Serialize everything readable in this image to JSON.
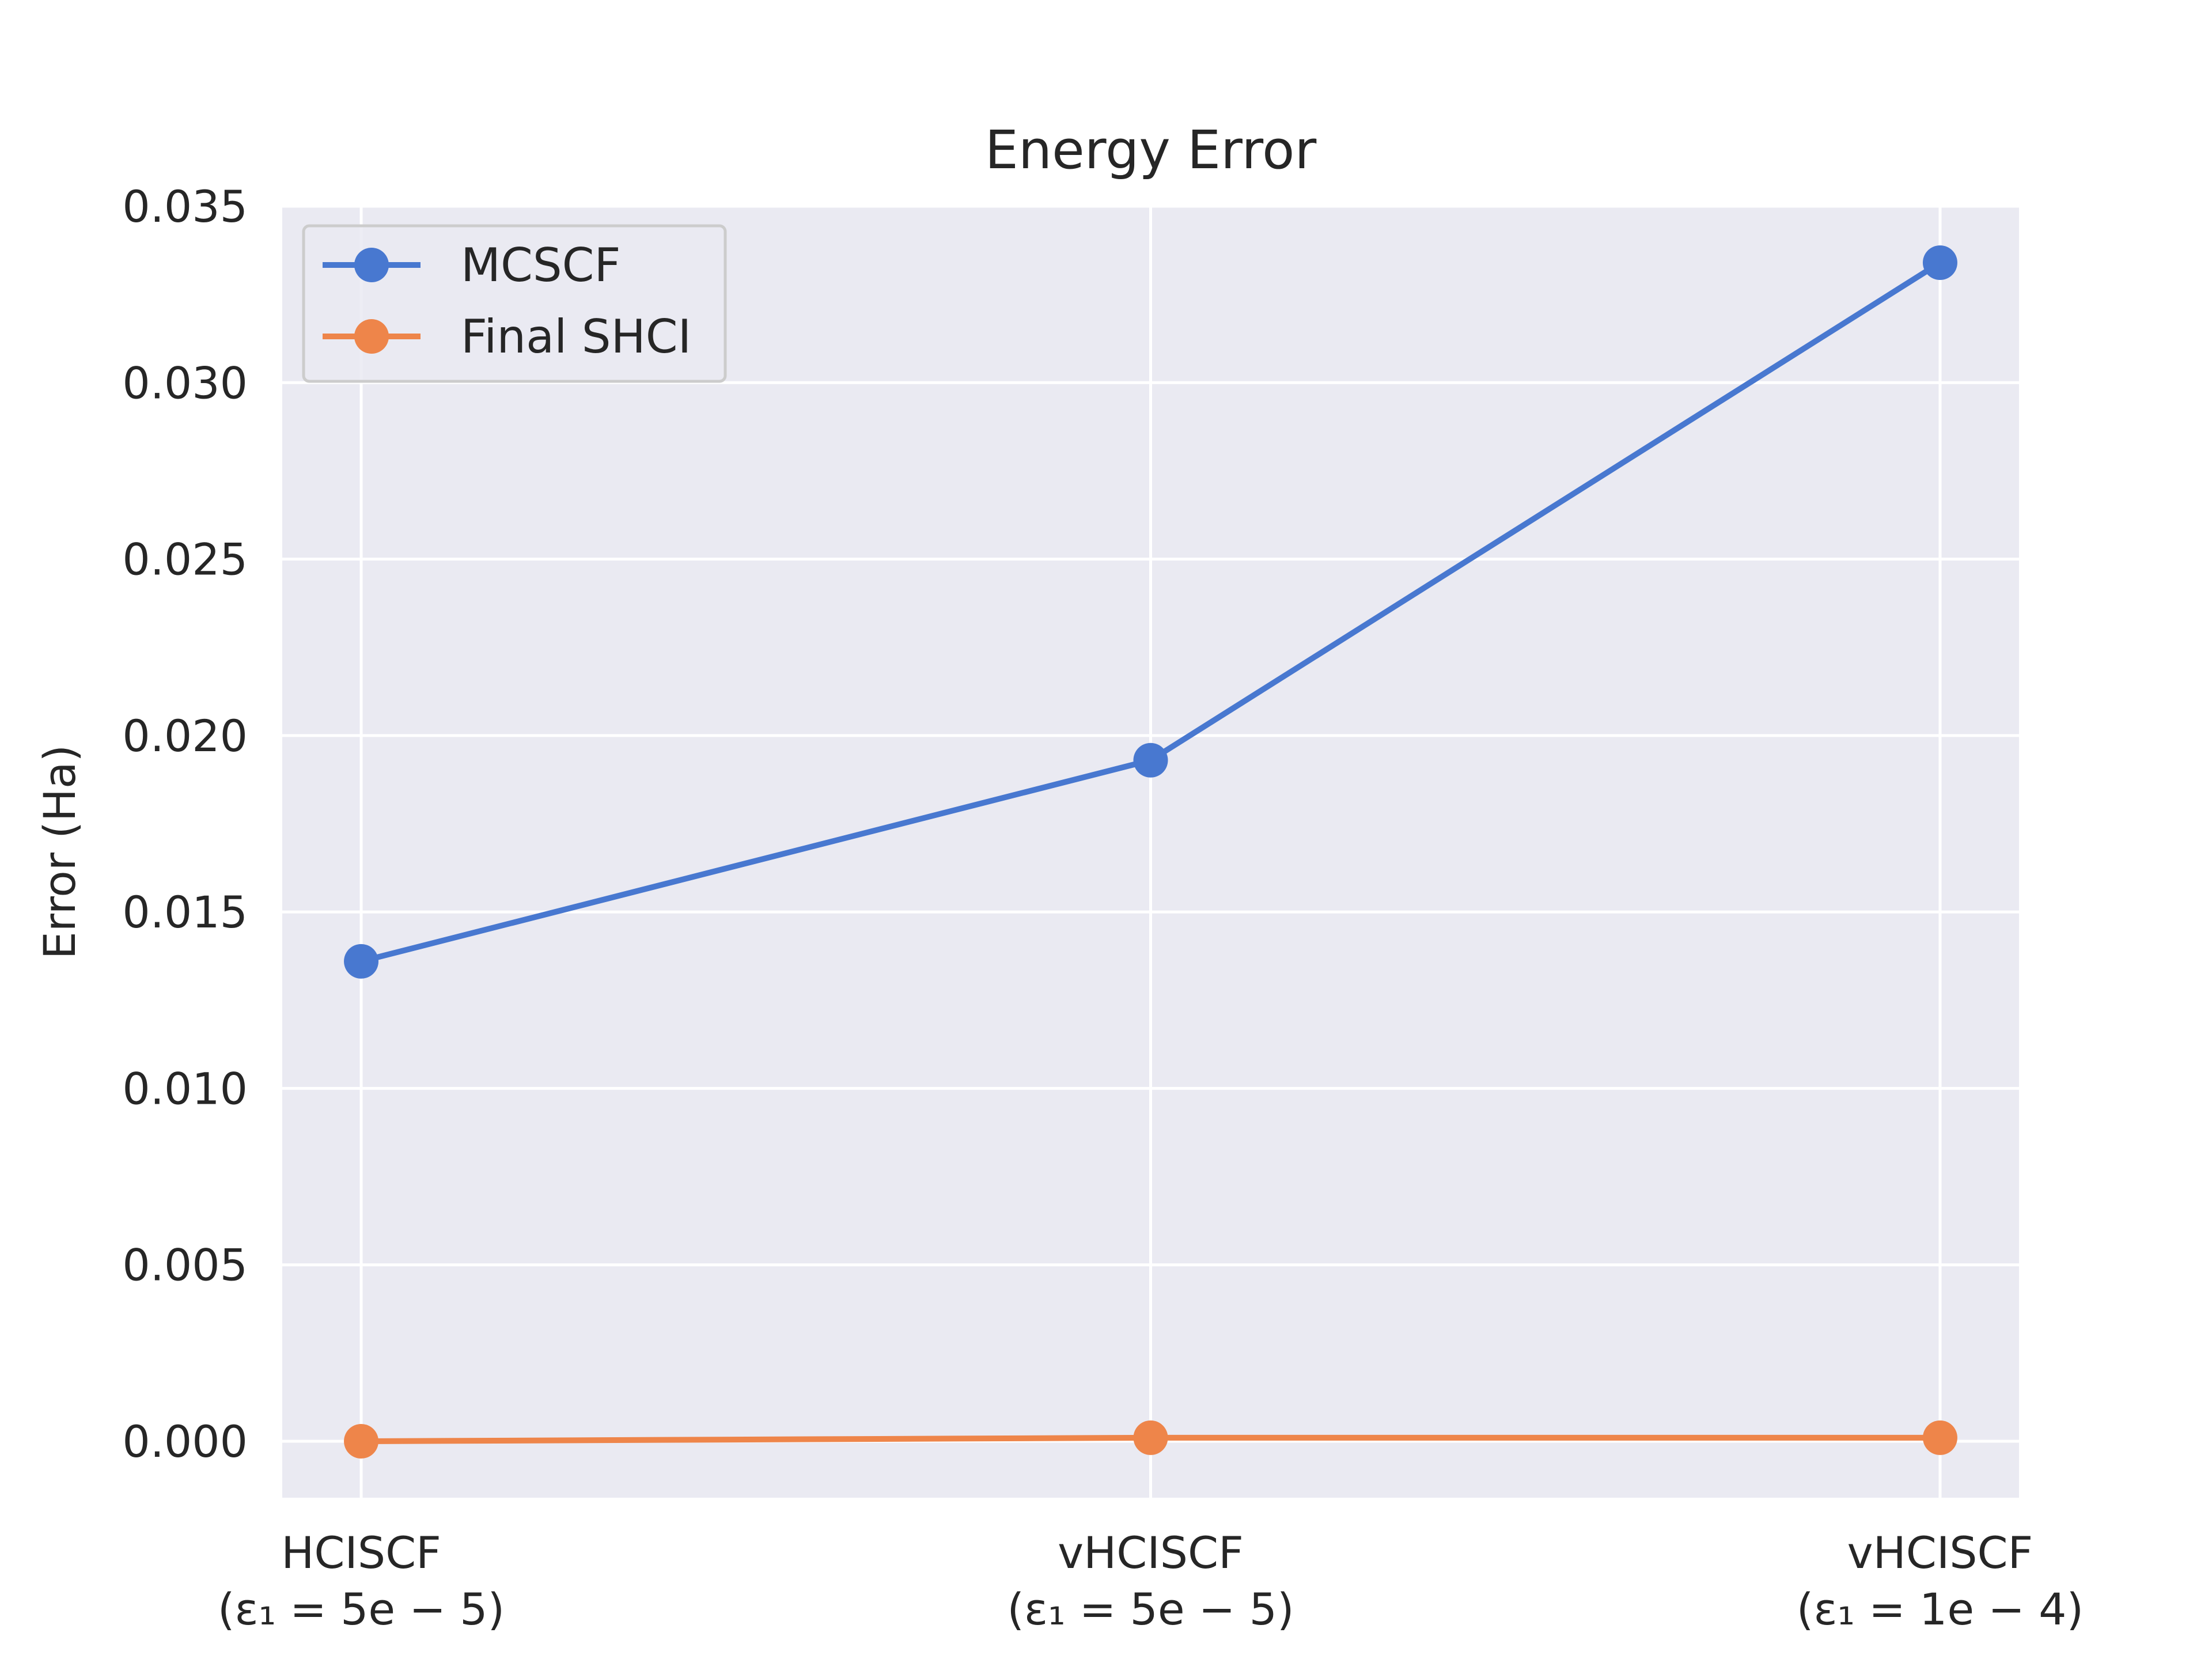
{
  "chart_data": {
    "type": "line",
    "title": "Energy Error",
    "xlabel": "",
    "ylabel": "Error (Ha)",
    "categories": [
      {
        "line1": "HCISCF",
        "line2": "(ε₁ = 5e − 5)"
      },
      {
        "line1": "vHCISCF",
        "line2": "(ε₁ = 5e − 5)"
      },
      {
        "line1": "vHCISCF",
        "line2": "(ε₁ = 1e − 4)"
      }
    ],
    "yticks": [
      "0.000",
      "0.005",
      "0.010",
      "0.015",
      "0.020",
      "0.025",
      "0.030",
      "0.035"
    ],
    "ylim": [
      -0.0016,
      0.035
    ],
    "grid": true,
    "legend_position": "top-left",
    "background": "#eaeaf2",
    "series": [
      {
        "name": "MCSCF",
        "color": "#4878d0",
        "values": [
          0.0136,
          0.0193,
          0.0334
        ]
      },
      {
        "name": "Final SHCI",
        "color": "#ee854a",
        "values": [
          0.0,
          0.0001,
          0.0001
        ]
      }
    ]
  }
}
